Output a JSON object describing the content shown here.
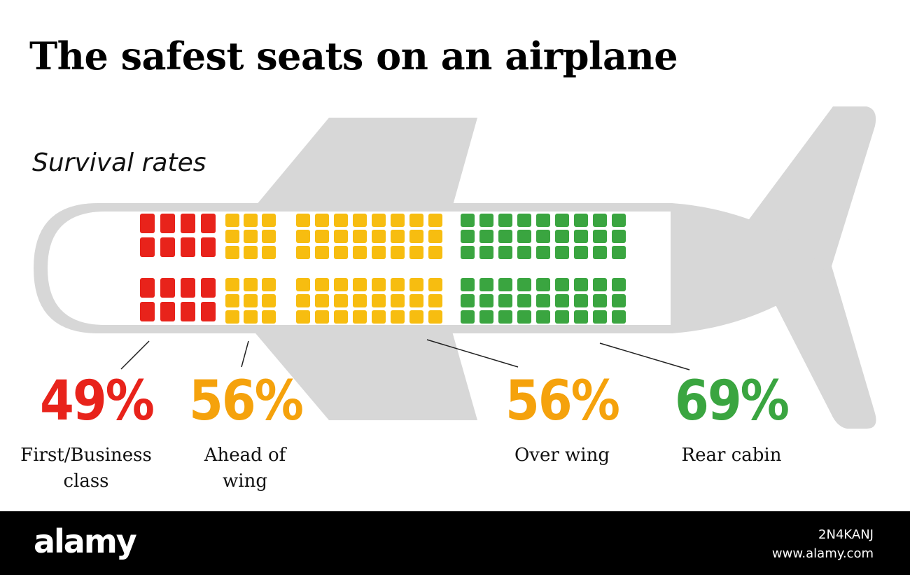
{
  "title": "The safest seats on an airplane",
  "subtitle": "Survival rates",
  "colors": {
    "red": "#e8231b",
    "orange": "#f5a20c",
    "yellow": "#f7bd10",
    "green": "#3aa540",
    "plane": "#d7d7d7"
  },
  "sections": [
    {
      "id": "first",
      "rate": "49%",
      "label": "First/Business class",
      "color": "#e8231b"
    },
    {
      "id": "ahead",
      "rate": "56%",
      "label": "Ahead of wing",
      "color": "#f5a20c"
    },
    {
      "id": "over",
      "rate": "56%",
      "label": "Over wing",
      "color": "#f5a20c"
    },
    {
      "id": "rear",
      "rate": "69%",
      "label": "Rear cabin",
      "color": "#3aa540"
    }
  ],
  "footer": {
    "brand": "alamy",
    "image_id": "2N4KANJ",
    "site": "www.alamy.com"
  }
}
